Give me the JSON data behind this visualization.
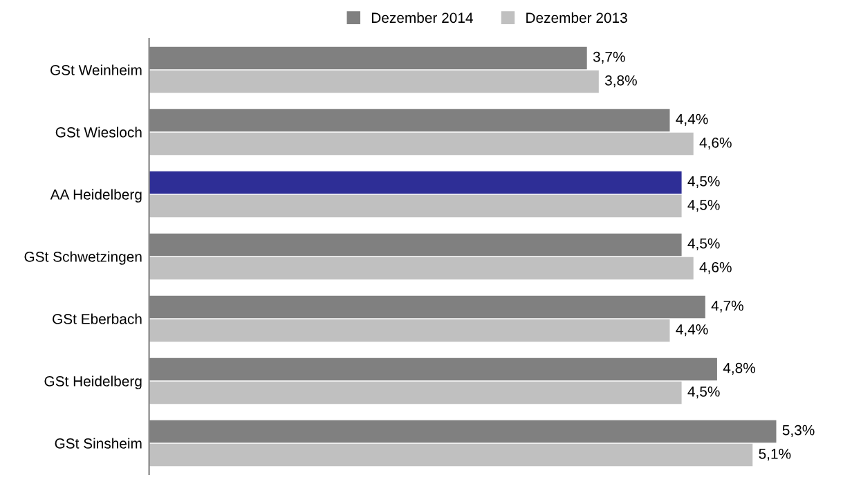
{
  "chart_data": {
    "type": "bar",
    "orientation": "horizontal",
    "categories": [
      "GSt Weinheim",
      "GSt Wiesloch",
      "AA Heidelberg",
      "GSt Schwetzingen",
      "GSt Eberbach",
      "GSt Heidelberg",
      "GSt Sinsheim"
    ],
    "series": [
      {
        "name": "Dezember 2014",
        "color": "#808080",
        "colors": [
          "#808080",
          "#808080",
          "#2e2e96",
          "#808080",
          "#808080",
          "#808080",
          "#808080"
        ],
        "values": [
          3.7,
          4.4,
          4.5,
          4.5,
          4.7,
          4.8,
          5.3
        ],
        "value_labels": [
          "3,7%",
          "4,4%",
          "4,5%",
          "4,5%",
          "4,7%",
          "4,8%",
          "5,3%"
        ]
      },
      {
        "name": "Dezember 2013",
        "color": "#c0c0c0",
        "colors": [
          "#c0c0c0",
          "#c0c0c0",
          "#c0c0c0",
          "#c0c0c0",
          "#c0c0c0",
          "#c0c0c0",
          "#c0c0c0"
        ],
        "values": [
          3.8,
          4.6,
          4.5,
          4.6,
          4.4,
          4.5,
          5.1
        ],
        "value_labels": [
          "3,8%",
          "4,6%",
          "4,5%",
          "4,6%",
          "4,4%",
          "4,5%",
          "5,1%"
        ]
      }
    ],
    "legend": "top",
    "grid": false
  }
}
